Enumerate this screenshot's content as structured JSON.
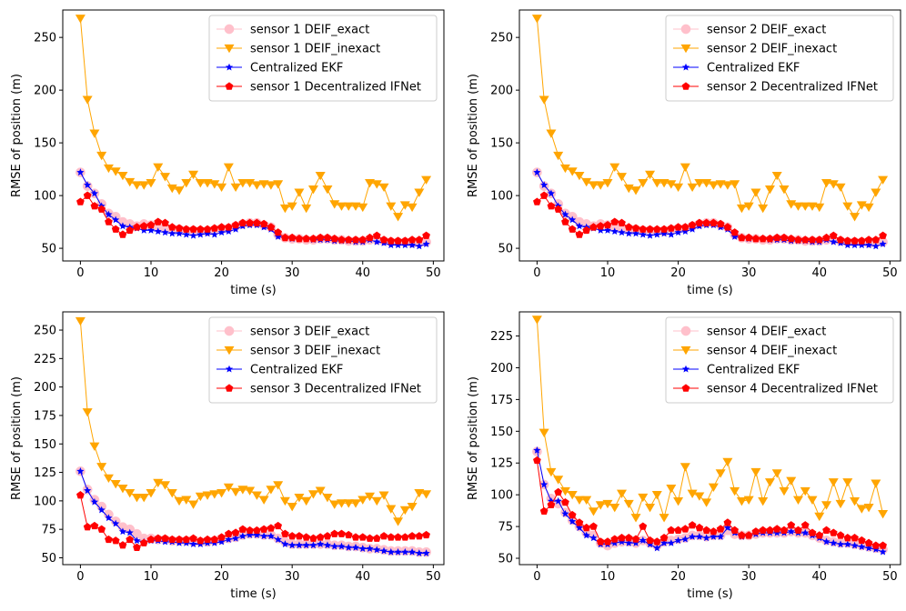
{
  "colors": {
    "DEIF_exact": "#ffc0cb",
    "DEIF_inexact": "#ffa500",
    "Centralized_EKF": "#0000ff",
    "Decentralized_IFNet": "#ff0000"
  },
  "chart_data": [
    {
      "type": "line",
      "xlabel": "time (s)",
      "ylabel": "RMSE of position (m)",
      "xlim": [
        -2.5,
        51.5
      ],
      "ylim": [
        38,
        276
      ],
      "xticks": [
        0,
        10,
        20,
        30,
        40,
        50
      ],
      "yticks": [
        50,
        100,
        150,
        200,
        250
      ],
      "legend_position": "top-right",
      "series": [
        {
          "name": "sensor 1 DEIF_exact",
          "key": "DEIF_exact",
          "marker": "circle",
          "values": [
            122,
            109,
            102,
            92,
            83,
            80,
            75,
            73,
            71,
            73,
            72,
            70,
            69,
            68,
            68,
            67,
            67,
            66,
            66,
            67,
            68,
            69,
            71,
            73,
            74,
            74,
            72,
            70,
            63,
            60,
            59,
            59,
            58,
            58,
            59,
            59,
            58,
            58,
            57,
            57,
            57,
            58,
            58,
            57,
            56,
            56,
            56,
            55,
            55,
            56
          ]
        },
        {
          "name": "sensor 1 DEIF_inexact",
          "key": "DEIF_inexact",
          "marker": "triangle-down",
          "values": [
            268,
            191,
            159,
            138,
            126,
            123,
            119,
            113,
            110,
            110,
            112,
            127,
            118,
            107,
            105,
            112,
            120,
            112,
            112,
            111,
            108,
            127,
            108,
            112,
            112,
            110,
            111,
            110,
            111,
            88,
            90,
            103,
            88,
            106,
            119,
            106,
            92,
            90,
            90,
            90,
            89,
            112,
            111,
            108,
            90,
            80,
            91,
            89,
            103,
            115
          ]
        },
        {
          "name": "Centralized EKF",
          "key": "Centralized_EKF",
          "marker": "star",
          "values": [
            122,
            110,
            102,
            90,
            82,
            77,
            71,
            70,
            69,
            67,
            67,
            66,
            65,
            64,
            64,
            63,
            62,
            63,
            64,
            63,
            65,
            66,
            68,
            71,
            72,
            72,
            70,
            68,
            61,
            60,
            59,
            59,
            59,
            58,
            58,
            58,
            57,
            57,
            57,
            56,
            56,
            58,
            56,
            55,
            53,
            53,
            53,
            53,
            52,
            54
          ]
        },
        {
          "name": "sensor 1 Decentralized IFNet",
          "key": "Decentralized_IFNet",
          "marker": "pentagon",
          "values": [
            94,
            100,
            90,
            87,
            75,
            68,
            63,
            67,
            70,
            71,
            72,
            75,
            74,
            70,
            69,
            68,
            68,
            68,
            68,
            69,
            70,
            70,
            72,
            74,
            74,
            74,
            73,
            70,
            65,
            60,
            60,
            59,
            59,
            59,
            60,
            60,
            59,
            58,
            58,
            58,
            58,
            60,
            62,
            58,
            57,
            57,
            57,
            58,
            58,
            62
          ]
        }
      ]
    },
    {
      "type": "line",
      "xlabel": "time (s)",
      "ylabel": "RMSE of position (m)",
      "xlim": [
        -2.5,
        51.5
      ],
      "ylim": [
        38,
        276
      ],
      "xticks": [
        0,
        10,
        20,
        30,
        40,
        50
      ],
      "yticks": [
        50,
        100,
        150,
        200,
        250
      ],
      "legend_position": "top-right",
      "series": [
        {
          "name": "sensor 2 DEIF_exact",
          "key": "DEIF_exact",
          "marker": "circle",
          "values": [
            122,
            109,
            102,
            92,
            83,
            80,
            75,
            73,
            71,
            73,
            72,
            70,
            69,
            68,
            68,
            67,
            67,
            66,
            66,
            67,
            68,
            69,
            71,
            73,
            74,
            74,
            72,
            70,
            63,
            60,
            59,
            59,
            58,
            58,
            59,
            59,
            58,
            58,
            57,
            57,
            57,
            58,
            58,
            57,
            56,
            56,
            56,
            55,
            55,
            56
          ]
        },
        {
          "name": "sensor 2 DEIF_inexact",
          "key": "DEIF_inexact",
          "marker": "triangle-down",
          "values": [
            268,
            191,
            159,
            138,
            126,
            123,
            119,
            113,
            110,
            110,
            112,
            127,
            118,
            107,
            105,
            112,
            120,
            112,
            112,
            111,
            108,
            127,
            108,
            112,
            112,
            110,
            111,
            110,
            111,
            88,
            90,
            103,
            88,
            106,
            119,
            106,
            92,
            90,
            90,
            90,
            89,
            112,
            111,
            108,
            90,
            80,
            91,
            89,
            103,
            115
          ]
        },
        {
          "name": "Centralized EKF",
          "key": "Centralized_EKF",
          "marker": "star",
          "values": [
            122,
            110,
            102,
            90,
            82,
            77,
            71,
            70,
            69,
            67,
            67,
            66,
            65,
            64,
            64,
            63,
            62,
            63,
            64,
            63,
            65,
            66,
            68,
            71,
            72,
            72,
            70,
            68,
            61,
            60,
            59,
            59,
            59,
            58,
            58,
            58,
            57,
            57,
            57,
            56,
            56,
            58,
            56,
            55,
            53,
            53,
            53,
            53,
            52,
            54
          ]
        },
        {
          "name": "sensor 2 Decentralized IFNet",
          "key": "Decentralized_IFNet",
          "marker": "pentagon",
          "values": [
            94,
            100,
            90,
            87,
            75,
            68,
            63,
            67,
            70,
            71,
            72,
            75,
            74,
            70,
            69,
            68,
            68,
            68,
            68,
            69,
            70,
            70,
            72,
            74,
            74,
            74,
            73,
            70,
            65,
            60,
            60,
            59,
            59,
            59,
            60,
            60,
            59,
            58,
            58,
            58,
            58,
            60,
            62,
            58,
            57,
            57,
            57,
            58,
            58,
            62
          ]
        }
      ]
    },
    {
      "type": "line",
      "xlabel": "time (s)",
      "ylabel": "RMSE of position (m)",
      "xlim": [
        -2.5,
        51.5
      ],
      "ylim": [
        44,
        266
      ],
      "xticks": [
        0,
        10,
        20,
        30,
        40,
        50
      ],
      "yticks": [
        50,
        75,
        100,
        125,
        150,
        175,
        200,
        225,
        250
      ],
      "legend_position": "top-right",
      "series": [
        {
          "name": "sensor 3 DEIF_exact",
          "key": "DEIF_exact",
          "marker": "circle",
          "values": [
            126,
            110,
            101,
            95,
            88,
            82,
            77,
            75,
            71,
            67,
            67,
            66,
            66,
            65,
            65,
            65,
            64,
            64,
            64,
            65,
            66,
            67,
            68,
            70,
            71,
            71,
            70,
            70,
            67,
            64,
            62,
            62,
            62,
            62,
            62,
            62,
            61,
            61,
            60,
            60,
            59,
            58,
            58,
            57,
            56,
            56,
            56,
            56,
            55,
            55
          ]
        },
        {
          "name": "sensor 3 DEIF_inexact",
          "key": "DEIF_inexact",
          "marker": "triangle-down",
          "values": [
            258,
            178,
            148,
            130,
            120,
            115,
            111,
            107,
            103,
            103,
            107,
            116,
            114,
            107,
            100,
            101,
            97,
            104,
            105,
            106,
            107,
            112,
            108,
            110,
            109,
            105,
            101,
            110,
            114,
            100,
            95,
            103,
            100,
            106,
            109,
            103,
            97,
            98,
            98,
            98,
            101,
            104,
            100,
            105,
            93,
            82,
            92,
            95,
            107,
            106
          ]
        },
        {
          "name": "Centralized EKF",
          "key": "Centralized_EKF",
          "marker": "star",
          "values": [
            126,
            109,
            99,
            92,
            85,
            80,
            73,
            72,
            65,
            64,
            65,
            65,
            64,
            64,
            63,
            63,
            62,
            62,
            63,
            63,
            64,
            66,
            67,
            69,
            70,
            70,
            69,
            69,
            66,
            62,
            61,
            61,
            61,
            61,
            62,
            61,
            60,
            60,
            59,
            59,
            58,
            58,
            57,
            56,
            55,
            55,
            55,
            55,
            54,
            54
          ]
        },
        {
          "name": "sensor 3 Decentralized IFNet",
          "key": "Decentralized_IFNet",
          "marker": "pentagon",
          "values": [
            105,
            77,
            78,
            75,
            66,
            65,
            61,
            66,
            59,
            63,
            66,
            67,
            67,
            66,
            66,
            66,
            67,
            65,
            66,
            66,
            68,
            71,
            72,
            75,
            74,
            74,
            75,
            76,
            78,
            71,
            69,
            69,
            68,
            67,
            68,
            69,
            71,
            71,
            70,
            68,
            68,
            67,
            67,
            69,
            68,
            68,
            68,
            69,
            69,
            70
          ]
        }
      ]
    },
    {
      "type": "line",
      "xlabel": "time (s)",
      "ylabel": "RMSE of position (m)",
      "xlim": [
        -2.5,
        51.5
      ],
      "ylim": [
        45,
        244
      ],
      "xticks": [
        0,
        10,
        20,
        30,
        40,
        50
      ],
      "yticks": [
        50,
        75,
        100,
        125,
        150,
        175,
        200,
        225
      ],
      "legend_position": "top-right",
      "series": [
        {
          "name": "sensor 4 DEIF_exact",
          "key": "DEIF_exact",
          "marker": "circle",
          "values": [
            134,
            108,
            97,
            93,
            86,
            80,
            75,
            70,
            68,
            62,
            60,
            62,
            63,
            63,
            62,
            64,
            62,
            60,
            63,
            64,
            65,
            66,
            68,
            68,
            67,
            68,
            68,
            72,
            69,
            68,
            68,
            69,
            70,
            70,
            70,
            70,
            71,
            70,
            70,
            68,
            66,
            64,
            63,
            62,
            62,
            61,
            60,
            59,
            58,
            57
          ]
        },
        {
          "name": "sensor 4 DEIF_inexact",
          "key": "DEIF_inexact",
          "marker": "triangle-down",
          "values": [
            238,
            149,
            118,
            112,
            103,
            100,
            96,
            96,
            87,
            92,
            93,
            90,
            101,
            93,
            82,
            98,
            90,
            100,
            82,
            105,
            95,
            122,
            101,
            99,
            94,
            106,
            117,
            126,
            103,
            95,
            96,
            118,
            95,
            110,
            117,
            103,
            111,
            96,
            103,
            96,
            83,
            92,
            110,
            93,
            110,
            95,
            89,
            90,
            109,
            85
          ]
        },
        {
          "name": "Centralized EKF",
          "key": "Centralized_EKF",
          "marker": "star",
          "values": [
            135,
            108,
            95,
            95,
            85,
            79,
            74,
            68,
            66,
            61,
            61,
            62,
            63,
            62,
            62,
            64,
            61,
            58,
            62,
            62,
            64,
            65,
            67,
            67,
            66,
            67,
            67,
            74,
            70,
            67,
            68,
            69,
            70,
            70,
            70,
            70,
            71,
            70,
            70,
            68,
            66,
            63,
            62,
            61,
            61,
            60,
            59,
            58,
            57,
            55
          ]
        },
        {
          "name": "sensor 4 Decentralized IFNet",
          "key": "Decentralized_IFNet",
          "marker": "pentagon",
          "values": [
            127,
            87,
            92,
            102,
            94,
            84,
            78,
            74,
            75,
            63,
            63,
            65,
            66,
            66,
            65,
            75,
            64,
            63,
            66,
            72,
            72,
            73,
            76,
            74,
            72,
            71,
            73,
            78,
            72,
            68,
            68,
            71,
            72,
            72,
            73,
            72,
            76,
            72,
            76,
            70,
            68,
            72,
            70,
            68,
            66,
            66,
            64,
            62,
            60,
            60
          ]
        }
      ]
    }
  ]
}
